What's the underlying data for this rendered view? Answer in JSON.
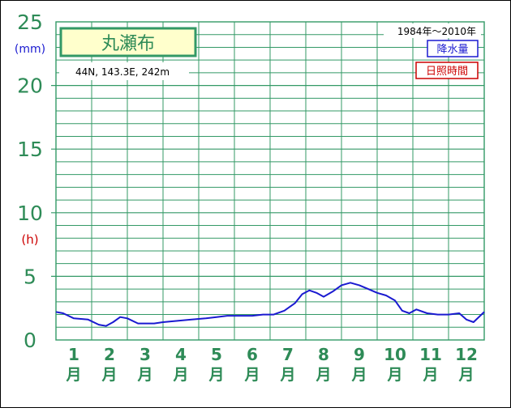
{
  "title": "丸瀬布",
  "location": "44N,  143.3E,  242m",
  "period": "1984年〜2010年",
  "unit_mm": "(mm)",
  "unit_h": "(h)",
  "legend": {
    "precip": "降水量",
    "sunshine": "日照時間"
  },
  "colors": {
    "grid": "#339966",
    "axis_text": "#2e8b57",
    "precip": "#1a1ad0",
    "sunshine": "#cc0000",
    "title_bg": "#ffffcc"
  },
  "chart_data": {
    "type": "line",
    "ylim": [
      0,
      25
    ],
    "y_ticks": [
      0,
      5,
      10,
      15,
      20,
      25
    ],
    "months": [
      "1",
      "2",
      "3",
      "4",
      "5",
      "6",
      "7",
      "8",
      "9",
      "10",
      "11",
      "12"
    ],
    "month_suffix": "月",
    "grid": true,
    "legend_position": "top-right",
    "series": [
      {
        "name": "降水量",
        "x": [
          0.0,
          0.2,
          0.5,
          0.9,
          1.2,
          1.4,
          1.6,
          1.8,
          2.0,
          2.3,
          2.5,
          2.75,
          3.0,
          3.4,
          3.8,
          4.2,
          4.5,
          4.8,
          5.2,
          5.5,
          5.8,
          6.1,
          6.4,
          6.7,
          6.9,
          7.1,
          7.3,
          7.5,
          7.75,
          8.0,
          8.25,
          8.5,
          8.75,
          9.0,
          9.25,
          9.5,
          9.7,
          9.9,
          10.1,
          10.4,
          10.7,
          11.0,
          11.3,
          11.5,
          11.7,
          12.0
        ],
        "y": [
          2.2,
          2.1,
          1.7,
          1.6,
          1.2,
          1.1,
          1.4,
          1.8,
          1.7,
          1.3,
          1.3,
          1.3,
          1.4,
          1.5,
          1.6,
          1.7,
          1.8,
          1.9,
          1.9,
          1.9,
          2.0,
          2.0,
          2.3,
          2.9,
          3.6,
          3.9,
          3.7,
          3.4,
          3.8,
          4.3,
          4.5,
          4.3,
          4.0,
          3.7,
          3.5,
          3.1,
          2.3,
          2.1,
          2.4,
          2.1,
          2.0,
          2.0,
          2.1,
          1.6,
          1.4,
          2.2
        ]
      }
    ]
  }
}
